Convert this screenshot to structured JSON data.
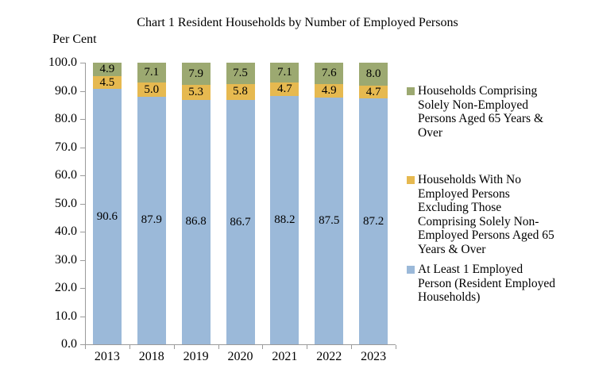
{
  "chart_data": {
    "type": "bar",
    "stacked": true,
    "title": "Chart 1 Resident Households by Number of Employed Persons",
    "ylabel": "Per Cent",
    "xlabel": "",
    "ylim": [
      0,
      100
    ],
    "ytick_step": 10,
    "ytick_decimals": 1,
    "grid": false,
    "legend_position": "right",
    "axis_color": "#9b9b9b",
    "categories": [
      "2013",
      "2018",
      "2019",
      "2020",
      "2021",
      "2022",
      "2023"
    ],
    "series": [
      {
        "name": "At Least 1 Employed Person (Resident Employed Households)",
        "color": "#9bb9d9",
        "values": [
          90.6,
          87.9,
          86.8,
          86.7,
          88.2,
          87.5,
          87.2
        ]
      },
      {
        "name": "Households With No Employed Persons Excluding Those Comprising Solely Non-Employed Persons Aged 65 Years & Over",
        "color": "#e6b950",
        "values": [
          4.5,
          5.0,
          5.3,
          5.8,
          4.7,
          4.9,
          4.7
        ]
      },
      {
        "name": "Households Comprising Solely Non-Employed Persons Aged 65 Years & Over",
        "color": "#9ca971",
        "values": [
          4.9,
          7.1,
          7.9,
          7.5,
          7.1,
          7.6,
          8.0
        ]
      }
    ]
  }
}
